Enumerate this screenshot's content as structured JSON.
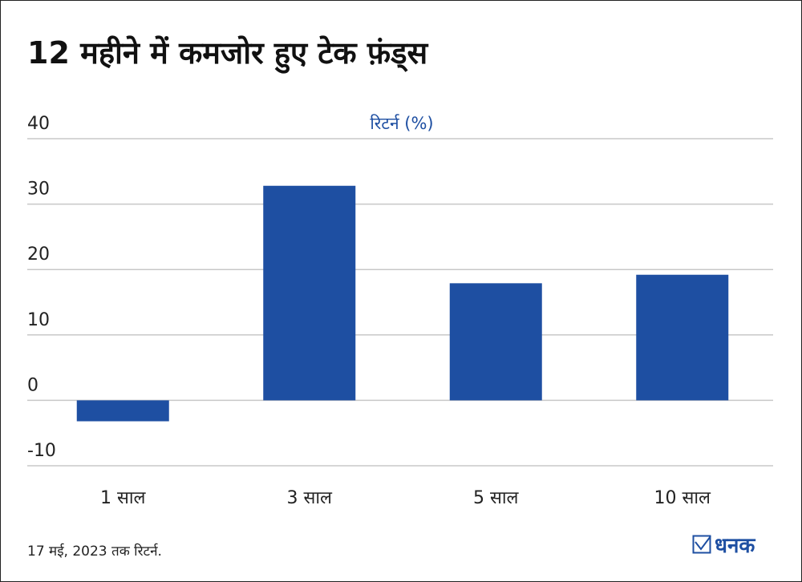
{
  "title": "12 महीने में कमजोर हुए टेक फ़ंड्स",
  "footnote": "17 मई, 2023 तक रिटर्न.",
  "logo_text": "धनक",
  "colors": {
    "bar": "#1e4fa2",
    "grid": "#c8c8c8",
    "label": "#1e4fa2"
  },
  "chart_data": {
    "type": "bar",
    "title": "रिटर्न (%)",
    "categories": [
      "1 साल",
      "3 साल",
      "5 साल",
      "10 साल"
    ],
    "values": [
      -3.2,
      32.8,
      17.9,
      19.2
    ],
    "ylim": [
      -10,
      40
    ],
    "yticks": [
      "40",
      "30",
      "20",
      "10",
      "0",
      "-10"
    ],
    "ytick_values": [
      40,
      30,
      20,
      10,
      0,
      -10
    ],
    "grid": true,
    "xlabel": "",
    "ylabel": ""
  }
}
